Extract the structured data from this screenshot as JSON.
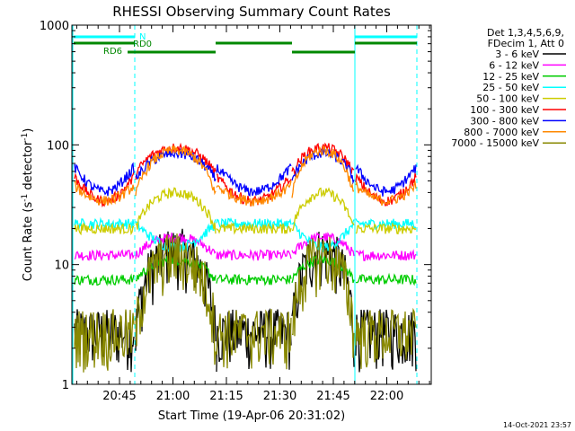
{
  "chart_data": {
    "type": "line",
    "title": "RHESSI Observing Summary Count Rates",
    "xlabel": "Start Time (19-Apr-06 20:31:02)",
    "ylabel_main": "Count Rate (s",
    "ylabel_sup1": "-1",
    "ylabel_mid": " detector",
    "ylabel_sup2": "-1",
    "ylabel_end": ")",
    "y_scale": "log",
    "ylim": [
      1,
      1000
    ],
    "x_ticks": [
      "20:45",
      "21:00",
      "21:15",
      "21:30",
      "21:45",
      "22:00"
    ],
    "y_ticks": [
      "1",
      "10",
      "100",
      "1000"
    ],
    "legend_header": [
      "Det 1,3,4,5,6,9,",
      "FDecim 1, Att 0"
    ],
    "legend_placement": "right",
    "series": [
      {
        "name": "3 - 6 keV",
        "color": "#000000",
        "profile": "pass",
        "base": 2.5,
        "peak": 12
      },
      {
        "name": "6 - 12 keV",
        "color": "#ff00ff",
        "profile": "pass",
        "base": 12,
        "peak": 17
      },
      {
        "name": "12 - 25 keV",
        "color": "#00cc00",
        "profile": "pass",
        "base": 7.5,
        "peak": 11
      },
      {
        "name": "25 - 50 keV",
        "color": "#00ffff",
        "profile": "pass",
        "base": 22,
        "peak": 14
      },
      {
        "name": "50 - 100 keV",
        "color": "#cccc00",
        "profile": "pass",
        "base": 20,
        "peak": 40
      },
      {
        "name": "100 - 300 keV",
        "color": "#ff0000",
        "profile": "bowl",
        "base": 40,
        "peak": 95
      },
      {
        "name": "300 - 800 keV",
        "color": "#0000ff",
        "profile": "bowl",
        "base": 48,
        "peak": 85
      },
      {
        "name": "800 - 7000 keV",
        "color": "#ff8800",
        "profile": "hump",
        "base": 38,
        "peak": 90
      },
      {
        "name": "7000 - 15000 keV",
        "color": "#888800",
        "profile": "pass",
        "base": 2.5,
        "peak": 11
      }
    ],
    "annotations": {
      "n_label": "N",
      "rd0_label": "RD0",
      "rd6_label": "RD6"
    },
    "footer_date": "14-Oct-2021 23:57"
  }
}
